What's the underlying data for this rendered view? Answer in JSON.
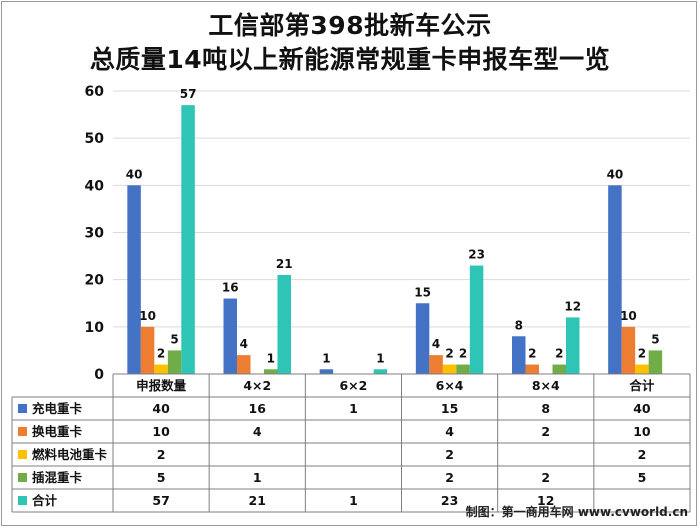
{
  "title": {
    "line1": "工信部第398批新车公示",
    "line2": "总质量14吨以上新能源常规重卡申报车型一览"
  },
  "credit": "制图：第一商用车网 www.cvworld.cn",
  "colors": {
    "series": [
      "#4472C4",
      "#ED7D31",
      "#FFC000",
      "#70AD47",
      "#2EC4B6"
    ],
    "grid": "#d9d9d9",
    "axis": "#7f7f7f"
  },
  "chart_data": {
    "type": "bar",
    "categories": [
      "申报数量",
      "4×2",
      "6×2",
      "6×4",
      "8×4",
      "合计"
    ],
    "series": [
      {
        "name": "充电重卡",
        "values": [
          40,
          16,
          1,
          15,
          8,
          40
        ]
      },
      {
        "name": "换电重卡",
        "values": [
          10,
          4,
          null,
          4,
          2,
          10
        ]
      },
      {
        "name": "燃料电池重卡",
        "values": [
          2,
          null,
          null,
          2,
          null,
          2
        ]
      },
      {
        "name": "插混重卡",
        "values": [
          5,
          1,
          null,
          2,
          2,
          5
        ]
      },
      {
        "name": "合计",
        "values": [
          57,
          21,
          1,
          23,
          12,
          null
        ]
      }
    ],
    "ylim": [
      0,
      60
    ],
    "yticks": [
      0,
      10,
      20,
      30,
      40,
      50,
      60
    ],
    "grid": true,
    "legend": "data-table",
    "data_labels": true
  }
}
